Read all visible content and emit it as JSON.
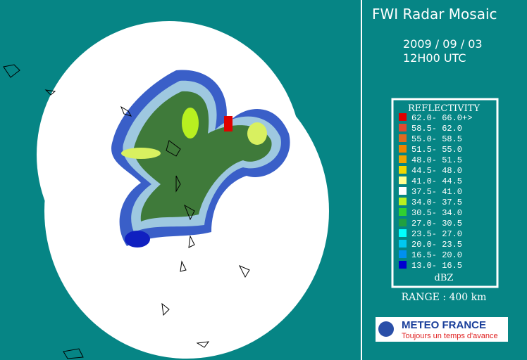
{
  "header": {
    "title": "FWI Radar Mosaic",
    "date": "2009 / 09 / 03",
    "time": "12H00 UTC"
  },
  "legend": {
    "title": "REFLECTIVITY",
    "unit": "dBZ",
    "entries": [
      {
        "label": "62.0- 66.0+>",
        "color": "#e00000"
      },
      {
        "label": "58.5- 62.0",
        "color": "#e04a30"
      },
      {
        "label": "55.0- 58.5",
        "color": "#e06a20"
      },
      {
        "label": "51.5- 55.0",
        "color": "#f08400"
      },
      {
        "label": "48.0- 51.5",
        "color": "#f0a400"
      },
      {
        "label": "44.5- 48.0",
        "color": "#f0d800"
      },
      {
        "label": "41.0- 44.5",
        "color": "#ffff90"
      },
      {
        "label": "37.5- 41.0",
        "color": "#ffffff"
      },
      {
        "label": "34.0- 37.5",
        "color": "#b8f020"
      },
      {
        "label": "30.5- 34.0",
        "color": "#30d030"
      },
      {
        "label": "27.0- 30.5",
        "color": "#20a040"
      },
      {
        "label": "23.5- 27.0",
        "color": "#00ffff"
      },
      {
        "label": "20.0- 23.5",
        "color": "#00c8f0"
      },
      {
        "label": "16.5- 20.0",
        "color": "#0090f0"
      },
      {
        "label": "13.0- 16.5",
        "color": "#0000d0"
      }
    ]
  },
  "range": "RANGE : 400 km",
  "logo": {
    "name": "METEO FRANCE",
    "tagline": "Toujours un temps d'avance"
  }
}
